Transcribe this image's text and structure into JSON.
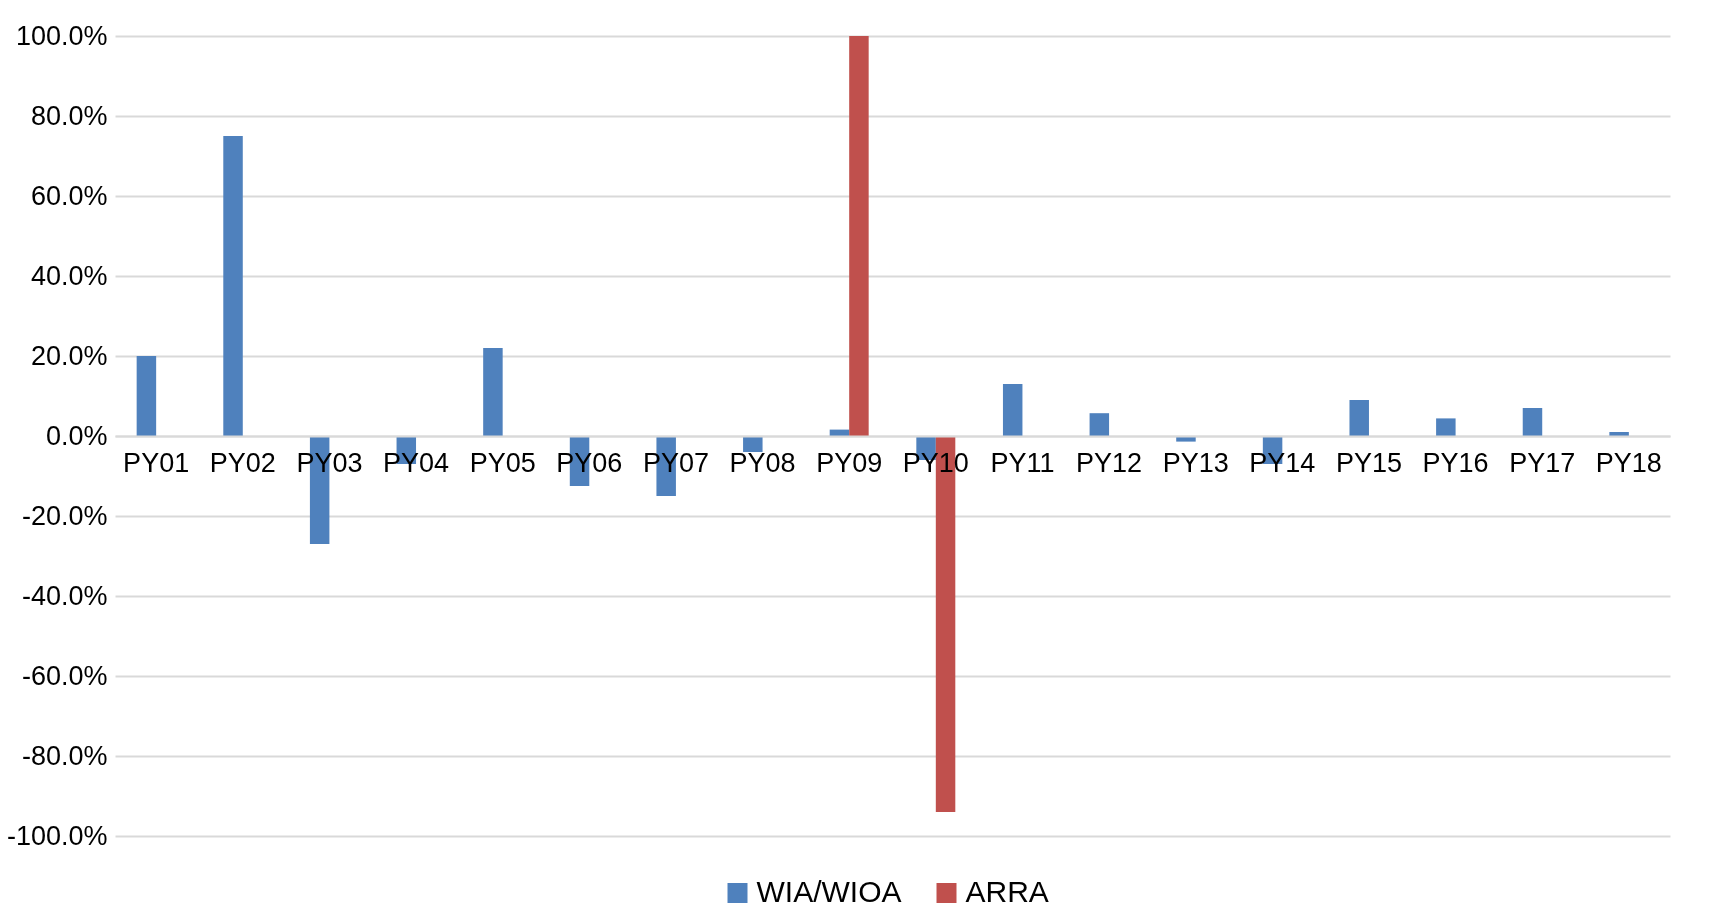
{
  "chart_data": {
    "type": "bar",
    "categories": [
      "PY01",
      "PY02",
      "PY03",
      "PY04",
      "PY05",
      "PY06",
      "PY07",
      "PY08",
      "PY09",
      "PY10",
      "PY11",
      "PY12",
      "PY13",
      "PY14",
      "PY15",
      "PY16",
      "PY17",
      "PY18"
    ],
    "series": [
      {
        "name": "WIA/WIOA",
        "color": "#4f81bd",
        "values": [
          20,
          75,
          -27,
          -7,
          22,
          -12.5,
          -15,
          -4,
          1.6,
          -6,
          13,
          5.7,
          -1.4,
          -7,
          9,
          4.4,
          7,
          1
        ]
      },
      {
        "name": "ARRA",
        "color": "#c0504d",
        "values": [
          null,
          null,
          null,
          null,
          null,
          null,
          null,
          null,
          100,
          -94,
          null,
          null,
          null,
          null,
          null,
          null,
          null,
          null
        ]
      }
    ],
    "ylim": [
      -100,
      100
    ],
    "yticks": [
      {
        "value": -100,
        "label": "-100.0%"
      },
      {
        "value": -80,
        "label": "-80.0%"
      },
      {
        "value": -60,
        "label": "-60.0%"
      },
      {
        "value": -40,
        "label": "-40.0%"
      },
      {
        "value": -20,
        "label": "-20.0%"
      },
      {
        "value": 0,
        "label": "0.0%"
      },
      {
        "value": 20,
        "label": "20.0%"
      },
      {
        "value": 40,
        "label": "40.0%"
      },
      {
        "value": 60,
        "label": "60.0%"
      },
      {
        "value": 80,
        "label": "80.0%"
      },
      {
        "value": 100,
        "label": "100.0%"
      }
    ],
    "grid": "y",
    "legend": "bottom"
  }
}
